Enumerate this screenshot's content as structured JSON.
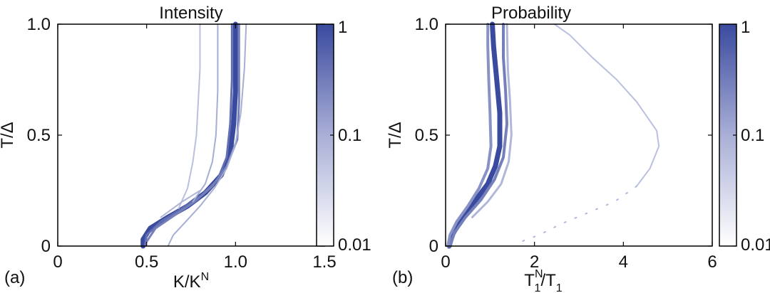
{
  "chart_data": [
    {
      "type": "heatmap",
      "panel_label": "(a)",
      "title": "Intensity",
      "xlabel_main": "K/K",
      "xlabel_sup": "N",
      "ylabel": "T/Δ",
      "xlim": [
        0,
        1.5
      ],
      "ylim": [
        0,
        1.0
      ],
      "x_ticks": [
        0,
        0.5,
        1.0,
        1.5
      ],
      "x_tick_labels": [
        "0",
        "0.5",
        "1.0",
        "1.5"
      ],
      "y_ticks": [
        0,
        0.5,
        1.0
      ],
      "y_tick_labels": [
        "0",
        "0.5",
        "1.0"
      ],
      "colorbar": {
        "scale": "log",
        "ticks": [
          1,
          0.1,
          0.01
        ],
        "tick_labels": [
          "1",
          "0.1",
          "0.01"
        ],
        "color_max": "#3a4a9e",
        "color_min": "#ffffff"
      },
      "series": [
        {
          "intensity": 1.0,
          "width": 7,
          "points": [
            [
              0.48,
              0.0
            ],
            [
              0.48,
              0.03
            ],
            [
              0.52,
              0.08
            ],
            [
              0.62,
              0.13
            ],
            [
              0.73,
              0.18
            ],
            [
              0.83,
              0.24
            ],
            [
              0.92,
              0.32
            ],
            [
              0.97,
              0.42
            ],
            [
              0.99,
              0.55
            ],
            [
              1.0,
              0.7
            ],
            [
              1.0,
              0.85
            ],
            [
              1.0,
              1.0
            ]
          ]
        },
        {
          "intensity": 0.8,
          "width": 3,
          "points": [
            [
              0.49,
              0.0
            ],
            [
              0.5,
              0.05
            ],
            [
              0.58,
              0.11
            ],
            [
              0.7,
              0.17
            ],
            [
              0.81,
              0.23
            ],
            [
              0.9,
              0.3
            ],
            [
              0.95,
              0.4
            ],
            [
              0.97,
              0.55
            ],
            [
              0.98,
              0.75
            ],
            [
              0.98,
              1.0
            ]
          ]
        },
        {
          "intensity": 0.7,
          "width": 3,
          "points": [
            [
              0.5,
              0.02
            ],
            [
              0.55,
              0.08
            ],
            [
              0.66,
              0.14
            ],
            [
              0.77,
              0.2
            ],
            [
              0.87,
              0.27
            ],
            [
              0.95,
              0.36
            ],
            [
              1.01,
              0.48
            ],
            [
              1.02,
              0.65
            ],
            [
              1.02,
              0.85
            ],
            [
              1.02,
              1.0
            ]
          ]
        },
        {
          "intensity": 0.45,
          "width": 2,
          "points": [
            [
              0.62,
              0.0
            ],
            [
              0.65,
              0.05
            ],
            [
              0.72,
              0.11
            ],
            [
              0.8,
              0.18
            ],
            [
              0.88,
              0.26
            ],
            [
              0.95,
              0.35
            ],
            [
              1.0,
              0.46
            ],
            [
              1.03,
              0.6
            ],
            [
              1.05,
              0.8
            ],
            [
              1.06,
              1.0
            ]
          ]
        },
        {
          "intensity": 0.35,
          "width": 2,
          "points": [
            [
              0.68,
              0.17
            ],
            [
              0.73,
              0.26
            ],
            [
              0.76,
              0.38
            ],
            [
              0.78,
              0.5
            ],
            [
              0.79,
              0.65
            ],
            [
              0.8,
              0.8
            ],
            [
              0.8,
              1.0
            ]
          ]
        },
        {
          "intensity": 0.45,
          "width": 2,
          "points": [
            [
              0.76,
              0.2
            ],
            [
              0.83,
              0.28
            ],
            [
              0.87,
              0.38
            ],
            [
              0.89,
              0.5
            ],
            [
              0.9,
              0.7
            ],
            [
              0.9,
              0.85
            ],
            [
              0.9,
              1.0
            ]
          ]
        },
        {
          "intensity": 0.4,
          "width": 2,
          "points": [
            [
              0.58,
              0.13
            ],
            [
              0.7,
              0.2
            ],
            [
              0.8,
              0.25
            ]
          ]
        }
      ]
    },
    {
      "type": "heatmap",
      "panel_label": "(b)",
      "title": "Probability",
      "xlabel_main": "T",
      "xlabel_sub": "1",
      "xlabel_sup": "N",
      "xlabel_den": "T",
      "xlabel_den_sub": "1",
      "ylabel": "T/Δ",
      "xlim": [
        0,
        6
      ],
      "ylim": [
        0,
        1.0
      ],
      "x_ticks": [
        0,
        2,
        4,
        6
      ],
      "x_tick_labels": [
        "0",
        "2",
        "4",
        "6"
      ],
      "y_ticks": [
        0,
        0.5,
        1.0
      ],
      "y_tick_labels": [
        "0",
        "0.5",
        "1.0"
      ],
      "colorbar": {
        "scale": "log",
        "ticks": [
          1,
          0.1,
          0.01
        ],
        "tick_labels": [
          "1",
          "0.1",
          "0.01"
        ],
        "color_max": "#3a4a9e",
        "color_min": "#ffffff"
      },
      "series": [
        {
          "intensity": 1.0,
          "width": 7,
          "points": [
            [
              0.08,
              0.0
            ],
            [
              0.15,
              0.05
            ],
            [
              0.35,
              0.12
            ],
            [
              0.65,
              0.2
            ],
            [
              0.95,
              0.28
            ],
            [
              1.12,
              0.36
            ],
            [
              1.22,
              0.45
            ],
            [
              1.22,
              0.6
            ],
            [
              1.15,
              0.75
            ],
            [
              1.08,
              0.9
            ],
            [
              1.05,
              1.0
            ]
          ]
        },
        {
          "intensity": 0.7,
          "width": 4,
          "points": [
            [
              0.1,
              0.0
            ],
            [
              0.2,
              0.06
            ],
            [
              0.45,
              0.13
            ],
            [
              0.8,
              0.21
            ],
            [
              1.1,
              0.3
            ],
            [
              1.3,
              0.4
            ],
            [
              1.38,
              0.55
            ],
            [
              1.35,
              0.7
            ],
            [
              1.3,
              0.85
            ],
            [
              1.3,
              1.0
            ]
          ]
        },
        {
          "intensity": 0.6,
          "width": 4,
          "points": [
            [
              0.05,
              0.0
            ],
            [
              0.1,
              0.05
            ],
            [
              0.25,
              0.11
            ],
            [
              0.5,
              0.18
            ],
            [
              0.75,
              0.26
            ],
            [
              0.95,
              0.35
            ],
            [
              1.02,
              0.45
            ],
            [
              1.0,
              0.6
            ],
            [
              0.97,
              0.75
            ],
            [
              0.95,
              0.9
            ],
            [
              0.95,
              1.0
            ]
          ]
        },
        {
          "intensity": 0.4,
          "width": 3,
          "points": [
            [
              0.6,
              0.13
            ],
            [
              0.95,
              0.2
            ],
            [
              1.25,
              0.28
            ],
            [
              1.42,
              0.38
            ],
            [
              1.48,
              0.5
            ],
            [
              1.45,
              0.65
            ],
            [
              1.4,
              0.8
            ],
            [
              1.38,
              1.0
            ]
          ]
        },
        {
          "intensity": 0.35,
          "width": 2,
          "points": [
            [
              2.45,
              1.0
            ],
            [
              2.8,
              0.95
            ],
            [
              3.3,
              0.85
            ],
            [
              3.85,
              0.75
            ],
            [
              4.3,
              0.65
            ],
            [
              4.75,
              0.52
            ],
            [
              4.8,
              0.45
            ],
            [
              4.6,
              0.35
            ],
            [
              4.3,
              0.27
            ]
          ]
        },
        {
          "intensity": 0.4,
          "width": 2,
          "dashed": true,
          "points": [
            [
              4.3,
              0.27
            ],
            [
              3.8,
              0.2
            ],
            [
              3.2,
              0.15
            ],
            [
              2.6,
              0.1
            ],
            [
              2.1,
              0.05
            ],
            [
              1.7,
              0.02
            ]
          ]
        }
      ]
    }
  ]
}
